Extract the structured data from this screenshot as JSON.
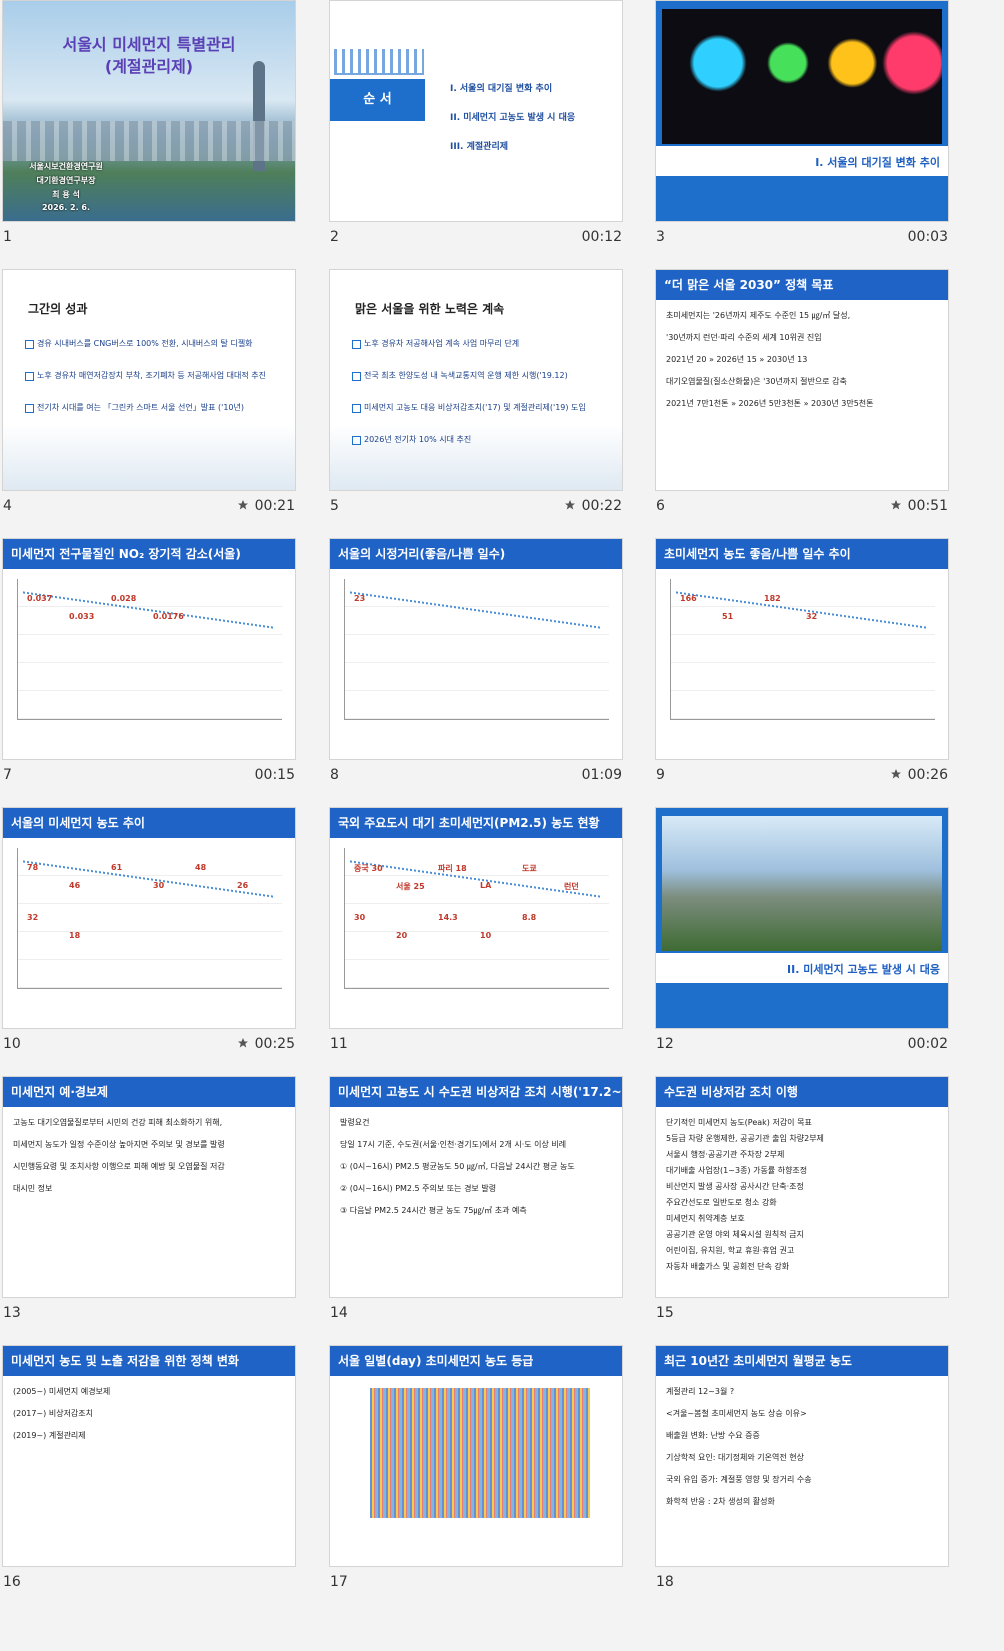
{
  "slides": [
    {
      "number": "1",
      "style": "cover",
      "title": "서울시 미세먼지 특별관리",
      "subtitle": "(계절관리제)",
      "items": [
        "서울시보건환경연구원",
        "대기환경연구부장",
        "최 용 석",
        "2026. 2. 6."
      ]
    },
    {
      "number": "2",
      "timing": "00:12",
      "style": "toc",
      "title": "순 서",
      "items": [
        "I. 서울의 대기질 변화 추이",
        "II. 미세먼지 고농도 발생 시 대응",
        "III. 계절관리제"
      ]
    },
    {
      "number": "3",
      "timing": "00:03",
      "style": "section",
      "title": "I. 서울의 대기질 변화 추이",
      "photo": "lights"
    },
    {
      "number": "4",
      "timing": "00:21",
      "animated": true,
      "style": "text",
      "title": "그간의 성과",
      "items": [
        "경유 시내버스를 CNG버스로 100% 전환, 시내버스의 탈 디젤화",
        "노후 경유차 매연저감장치 부착, 조기폐차 등 저공해사업 대대적 추진",
        "전기차 시대를 여는 「그린카 스마트 서울 선언」발표 ('10년)"
      ]
    },
    {
      "number": "5",
      "timing": "00:22",
      "animated": true,
      "style": "text",
      "title": "맑은 서울을 위한 노력은 계속",
      "items": [
        "노후 경유차 저공해사업 계속 사업 마무리 단계",
        "전국 최초 한양도성 내 녹색교통지역 운행 제한 시행('19.12)",
        "미세먼지 고농도 대응 비상저감조치('17) 및 계절관리제('19) 도입",
        "2026년 전기차 10% 시대 추진"
      ]
    },
    {
      "number": "6",
      "timing": "00:51",
      "animated": true,
      "style": "header",
      "title": "“더 맑은 서울 2030” 정책 목표",
      "items": [
        "초미세먼지는 '26년까지 제주도 수준인 15 ㎍/㎥ 달성,",
        "'30년까지 런던·파리 수준의 세계 10위권 진입",
        "2021년 20  »  2026년 15  »  2030년 13",
        "대기오염물질(질소산화물)은 '30년까지 절반으로 감축",
        "2021년 7만1천톤  »  2026년 5만3천톤  »  2030년 3만5천톤"
      ]
    },
    {
      "number": "7",
      "timing": "00:15",
      "style": "header",
      "title": "미세먼지 전구물질인 NO₂ 장기적 감소(서울)",
      "labels": [
        "0.037",
        "0.033",
        "0.028",
        "0.0176"
      ]
    },
    {
      "number": "8",
      "timing": "01:09",
      "style": "header",
      "title": "서울의 시정거리(좋음/나쁨 일수)",
      "labels": [
        "23"
      ]
    },
    {
      "number": "9",
      "timing": "00:26",
      "animated": true,
      "style": "header",
      "title": "초미세먼지 농도 좋음/나쁨 일수 추이",
      "labels": [
        "166",
        "51",
        "182",
        "32"
      ]
    },
    {
      "number": "10",
      "timing": "00:25",
      "animated": true,
      "style": "header",
      "title": "서울의 미세먼지 농도 추이",
      "labels": [
        "78",
        "46",
        "61",
        "30",
        "48",
        "26",
        "32",
        "18"
      ]
    },
    {
      "number": "11",
      "style": "header",
      "title": "국외 주요도시 대기 초미세먼지(PM2.5) 농도 현황",
      "labels": [
        "중국 30",
        "서울 25",
        "파리 18",
        "LA",
        "도쿄",
        "런던",
        "30",
        "20",
        "14.3",
        "10",
        "8.8"
      ]
    },
    {
      "number": "12",
      "timing": "00:02",
      "style": "section",
      "title": "II. 미세먼지 고농도 발생 시 대응",
      "photo": "city"
    },
    {
      "number": "13",
      "style": "header",
      "title": "미세먼지 예·경보제",
      "items": [
        "고농도 대기오염물질로부터 시민의 건강 피해 최소화하기 위해,",
        "미세먼지 농도가 일정 수준이상 높아지면 주의보 및 경보를 발령",
        "시민행동요령 및 조치사항 이행으로 피해 예방 및 오염물질 저감",
        "대시민 정보"
      ]
    },
    {
      "number": "14",
      "style": "header",
      "title": "미세먼지 고농도 시 수도권 비상저감 조치 시행('17.2~)",
      "items": [
        "발령요건",
        "당일 17시 기준, 수도권(서울·인천·경기도)에서 2개 시·도 이상 비례",
        "① (0시~16시) PM2.5 평균농도 50 ㎍/㎥, 다음날 24시간 평균 농도",
        "② (0시~16시) PM2.5 주의보 또는 경보 발령",
        "③ 다음날 PM2.5 24시간 평균 농도 75㎍/㎥ 초과 예측"
      ]
    },
    {
      "number": "15",
      "style": "header",
      "title": "수도권 비상저감 조치 이행",
      "items": [
        "단기적인 미세먼지 농도(Peak) 저감이 목표",
        "5등급 차량 운행제한, 공공기관 출입 차량2부제",
        "서울시 행정·공공기관 주차장 2부제",
        "대기배출 사업장(1~3종) 가동률 하향조정",
        "비산먼지 발생 공사장 공사시간 단축·조정",
        "주요간선도로 일반도로 청소 강화",
        "미세먼지 취약계층 보호",
        "공공기관 운영 야외 체육시설 원칙적 금지",
        "어린이집, 유치원, 학교 휴원·휴업 권고",
        "자동차 배출가스 및 공회전 단속 강화"
      ]
    },
    {
      "number": "16",
      "style": "header",
      "title": "미세먼지 농도 및 노출 저감을 위한 정책 변화",
      "items": [
        "(2005~) 미세먼지 예경보제",
        "(2017~) 비상저감조치",
        "(2019~) 계절관리제"
      ]
    },
    {
      "number": "17",
      "style": "header",
      "title": "서울 일별(day) 초미세먼지 농도 등급",
      "heatmap": true
    },
    {
      "number": "18",
      "style": "header",
      "title": "최근 10년간 초미세먼지 월평균 농도",
      "items": [
        "계절관리 12~3월 ?",
        "<겨울~봄철 초미세먼지 농도 상승 이유>",
        "배출원 변화: 난방 수요 증증",
        "기상학적 요인: 대기정체와 기온역전 현상",
        "국외 유입 증가: 계절풍 영향 및 장거리 수송",
        "화학적 반응 : 2차 생성의 활성화"
      ]
    }
  ]
}
